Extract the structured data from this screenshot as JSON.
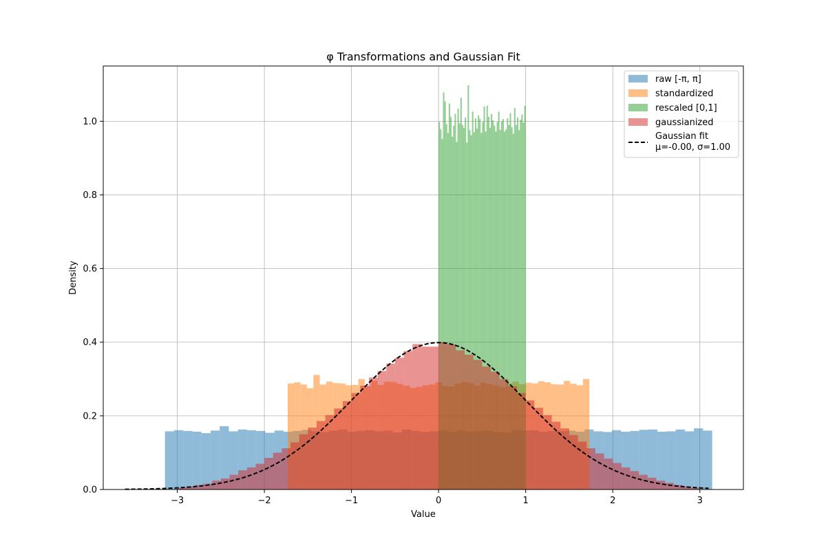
{
  "chart_data": {
    "type": "histogram",
    "title": "φ Transformations and Gaussian Fit",
    "xlabel": "Value",
    "ylabel": "Density",
    "xlim": [
      -3.85,
      3.5
    ],
    "ylim": [
      0,
      1.15
    ],
    "xticks": [
      -3,
      -2,
      -1,
      0,
      1,
      2,
      3
    ],
    "xtick_labels": [
      "−3",
      "−2",
      "−1",
      "0",
      "1",
      "2",
      "3"
    ],
    "yticks": [
      0.0,
      0.2,
      0.4,
      0.6,
      0.8,
      1.0
    ],
    "ytick_labels": [
      "0.0",
      "0.2",
      "0.4",
      "0.6",
      "0.8",
      "1.0"
    ],
    "grid": true,
    "legend_position": "upper right",
    "series": [
      {
        "name": "raw [-π, π]",
        "color": "#1f77b4",
        "alpha": 0.5,
        "x_start": -3.14159,
        "x_end": 3.14159,
        "densities": [
          0.158,
          0.161,
          0.159,
          0.157,
          0.153,
          0.16,
          0.172,
          0.158,
          0.163,
          0.161,
          0.159,
          0.154,
          0.16,
          0.157,
          0.159,
          0.162,
          0.158,
          0.156,
          0.16,
          0.163,
          0.157,
          0.159,
          0.161,
          0.158,
          0.16,
          0.155,
          0.163,
          0.159,
          0.156,
          0.158,
          0.16,
          0.157,
          0.161,
          0.158,
          0.159,
          0.16,
          0.156,
          0.155,
          0.162,
          0.16,
          0.161,
          0.157,
          0.159,
          0.158,
          0.16,
          0.157,
          0.163,
          0.158,
          0.156,
          0.161,
          0.157,
          0.159,
          0.162,
          0.163,
          0.157,
          0.158,
          0.163,
          0.158,
          0.166,
          0.16
        ]
      },
      {
        "name": "standardized",
        "color": "#ff7f0e",
        "alpha": 0.5,
        "x_start": -1.732,
        "x_end": 1.732,
        "densities": [
          0.288,
          0.291,
          0.285,
          0.275,
          0.311,
          0.285,
          0.293,
          0.289,
          0.288,
          0.283,
          0.284,
          0.3,
          0.28,
          0.295,
          0.284,
          0.293,
          0.292,
          0.287,
          0.282,
          0.276,
          0.279,
          0.283,
          0.285,
          0.291,
          0.281,
          0.28,
          0.288,
          0.292,
          0.289,
          0.282,
          0.29,
          0.286,
          0.283,
          0.278,
          0.288,
          0.293,
          0.286,
          0.29,
          0.288,
          0.294,
          0.291,
          0.286,
          0.285,
          0.295,
          0.287,
          0.283,
          0.3
        ]
      },
      {
        "name": "rescaled [0,1]",
        "color": "#2ca02c",
        "alpha": 0.5,
        "x_start": 0.0,
        "x_end": 1.0,
        "densities": [
          0.998,
          0.978,
          0.952,
          1.078,
          1.054,
          0.992,
          0.968,
          1.048,
          1.012,
          0.958,
          0.988,
          1.02,
          0.944,
          1.034,
          0.994,
          1.064,
          0.99,
          0.982,
          1.01,
          0.942,
          1.098,
          0.976,
          0.962,
          1.026,
          0.97,
          1.008,
          0.98,
          1.016,
          1.006,
          0.968,
          0.998,
          1.04,
          0.972,
          1.042,
          1.012,
          0.982,
          1.02,
          1.002,
          0.988,
          0.972,
          0.998,
          1.026,
          0.976,
          1.0,
          1.006,
          0.972,
          0.978,
          1.008,
          0.99,
          1.022,
          0.984,
          0.966,
          1.036,
          0.99,
          1.01,
          0.976,
          1.004,
          1.018,
          0.996,
          1.042
        ]
      },
      {
        "name": "gaussianized",
        "color": "#d62728",
        "alpha": 0.5,
        "x_start": -3.0,
        "x_end": 3.0,
        "densities": [
          0.004,
          0.008,
          0.012,
          0.016,
          0.024,
          0.03,
          0.04,
          0.052,
          0.06,
          0.07,
          0.086,
          0.1,
          0.112,
          0.128,
          0.15,
          0.168,
          0.186,
          0.202,
          0.22,
          0.24,
          0.262,
          0.282,
          0.304,
          0.322,
          0.342,
          0.358,
          0.376,
          0.395,
          0.388,
          0.388,
          0.4,
          0.394,
          0.378,
          0.366,
          0.352,
          0.334,
          0.32,
          0.3,
          0.28,
          0.262,
          0.242,
          0.222,
          0.202,
          0.184,
          0.166,
          0.148,
          0.13,
          0.112,
          0.098,
          0.084,
          0.072,
          0.06,
          0.05,
          0.04,
          0.032,
          0.024,
          0.018,
          0.012,
          0.008,
          0.004
        ]
      }
    ],
    "fit": {
      "name": "Gaussian fit",
      "label_line2": "μ=-0.00, σ=1.00",
      "mu": 0.0,
      "sigma": 1.0,
      "x_range": [
        -3.6,
        3.1
      ],
      "color": "#000000",
      "linestyle": "dashed"
    }
  }
}
